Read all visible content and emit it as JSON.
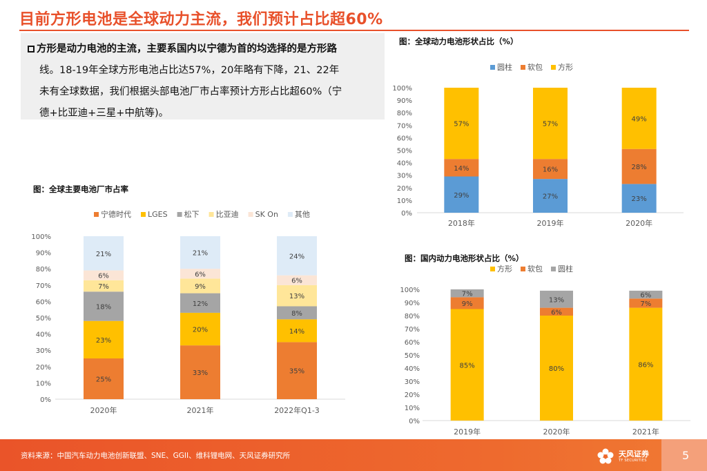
{
  "title": "目前方形电池是全球动力主流，我们预计占比超60%",
  "summary": {
    "line1": "方形是动力电池的主流，主要系国内以宁德为首的均选择的是方形路",
    "line2": "线。18-19年全球方形电池占比达57%，20年略有下降，21、22年",
    "line3": "未有全球数据，我们根据头部电池厂市占率预计方形占比超60%（宁",
    "line4": "德+比亚迪+三星+中航等)。"
  },
  "footer": {
    "source": "资料来源：中国汽车动力电池创新联盟、SNE、GGII、维科锂电网、天风证券研究所",
    "brand_cn": "天风证券",
    "brand_en": "TF SECURITIES",
    "page": "5"
  },
  "colors": {
    "accent": "#e8502a",
    "orange": "#ed7d31",
    "gold": "#ffc000",
    "blue": "#5b9bd5",
    "gray": "#a5a5a5",
    "lightyellow": "#ffe699",
    "peach": "#fbe5d6",
    "lightblue": "#deebf7"
  },
  "chart_data": [
    {
      "id": "global-share",
      "type": "bar",
      "stacked": true,
      "title": "图：全球主要电池厂市占率",
      "categories": [
        "2020年",
        "2021年",
        "2022年Q1-3"
      ],
      "series": [
        {
          "name": "宁德时代",
          "values": [
            25,
            33,
            35
          ],
          "color": "#ed7d31"
        },
        {
          "name": "LGES",
          "values": [
            23,
            20,
            14
          ],
          "color": "#ffc000"
        },
        {
          "name": "松下",
          "values": [
            18,
            12,
            8
          ],
          "color": "#a5a5a5"
        },
        {
          "name": "比亚迪",
          "values": [
            7,
            9,
            13
          ],
          "color": "#ffe699"
        },
        {
          "name": "SK On",
          "values": [
            6,
            6,
            6
          ],
          "color": "#fbe5d6"
        },
        {
          "name": "其他",
          "values": [
            21,
            21,
            24
          ],
          "color": "#deebf7"
        }
      ],
      "ylim": [
        0,
        100
      ],
      "yticks": [
        "0%",
        "10%",
        "20%",
        "30%",
        "40%",
        "50%",
        "60%",
        "70%",
        "80%",
        "90%",
        "100%"
      ],
      "labels": [
        [
          "25%",
          "33%",
          "35%"
        ],
        [
          "23%",
          "20%",
          "14%"
        ],
        [
          "18%",
          "12%",
          "8%"
        ],
        [
          "7%",
          "9%",
          "13%"
        ],
        [
          "6%",
          "6%",
          "6%"
        ],
        [
          "21%",
          "21%",
          "24%"
        ]
      ],
      "legend": "top"
    },
    {
      "id": "global-shape",
      "type": "bar",
      "stacked": true,
      "title": "图：全球动力电池形状占比（%）",
      "categories": [
        "2018年",
        "2019年",
        "2020年"
      ],
      "series": [
        {
          "name": "圆柱",
          "values": [
            29,
            27,
            23
          ],
          "color": "#5b9bd5"
        },
        {
          "name": "软包",
          "values": [
            14,
            16,
            28
          ],
          "color": "#ed7d31"
        },
        {
          "name": "方形",
          "values": [
            57,
            57,
            49
          ],
          "color": "#ffc000"
        }
      ],
      "ylim": [
        0,
        100
      ],
      "yticks": [
        "0%",
        "10%",
        "20%",
        "30%",
        "40%",
        "50%",
        "60%",
        "70%",
        "80%",
        "90%",
        "100%"
      ],
      "labels": [
        [
          "29%",
          "27%",
          "23%"
        ],
        [
          "14%",
          "16%",
          "28%"
        ],
        [
          "57%",
          "57%",
          "49%"
        ]
      ],
      "legend": "top"
    },
    {
      "id": "domestic-shape",
      "type": "bar",
      "stacked": true,
      "title": "图：国内动力电池形状占比（%）",
      "categories": [
        "2019年",
        "2020年",
        "2021年"
      ],
      "series": [
        {
          "name": "方形",
          "values": [
            85,
            80,
            86
          ],
          "color": "#ffc000"
        },
        {
          "name": "软包",
          "values": [
            9,
            6,
            7
          ],
          "color": "#ed7d31"
        },
        {
          "name": "圆柱",
          "values": [
            7,
            13,
            6
          ],
          "color": "#a5a5a5"
        }
      ],
      "ylim": [
        0,
        100
      ],
      "yticks": [
        "0%",
        "10%",
        "20%",
        "30%",
        "40%",
        "50%",
        "60%",
        "70%",
        "80%",
        "90%",
        "100%"
      ],
      "labels": [
        [
          "85%",
          "80%",
          "86%"
        ],
        [
          "9%",
          "6%",
          "7%"
        ],
        [
          "7%",
          "13%",
          "6%"
        ]
      ],
      "legend": "top"
    }
  ]
}
